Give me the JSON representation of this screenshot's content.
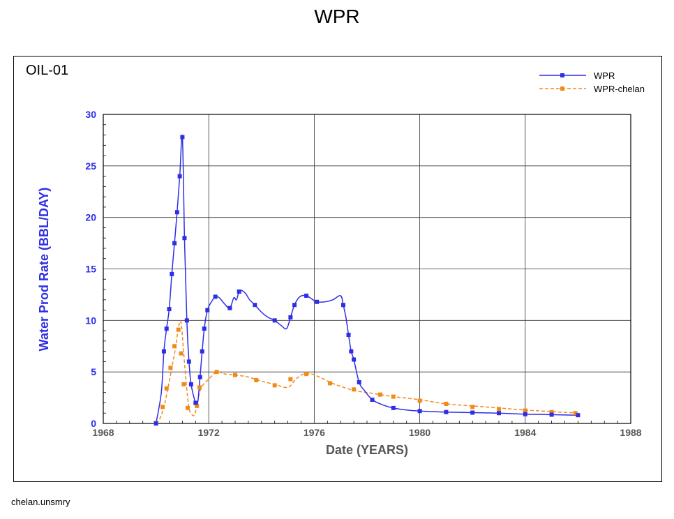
{
  "title": "WPR",
  "well": "OIL-01",
  "footer": "chelan.unsmry",
  "colors": {
    "wpr": "#2e2ee6",
    "chelan": "#f28a1a",
    "axis_y": "#2e2ee6",
    "axis_x": "#555555"
  },
  "chart_data": {
    "type": "line",
    "xlabel": "Date (YEARS)",
    "ylabel": "Water Prod Rate (BBL/DAY)",
    "xlim": [
      1968,
      1988
    ],
    "ylim": [
      0,
      30
    ],
    "x_ticks": [
      "1968",
      "1972",
      "1976",
      "1980",
      "1984",
      "1988"
    ],
    "y_ticks": [
      "0",
      "5",
      "10",
      "15",
      "20",
      "25",
      "30"
    ],
    "grid": true,
    "legend_position": "top-right",
    "series": [
      {
        "name": "WPR",
        "style": "solid",
        "x": [
          1970.0,
          1970.2,
          1970.3,
          1970.4,
          1970.5,
          1970.6,
          1970.7,
          1970.8,
          1970.9,
          1971.0,
          1971.08,
          1971.17,
          1971.25,
          1971.33,
          1971.5,
          1971.58,
          1971.67,
          1971.75,
          1971.83,
          1971.95,
          1972.1,
          1972.25,
          1972.4,
          1972.6,
          1972.8,
          1972.95,
          1973.05,
          1973.15,
          1973.25,
          1973.4,
          1973.55,
          1973.75,
          1974.0,
          1974.25,
          1974.5,
          1974.75,
          1974.95,
          1975.1,
          1975.25,
          1975.45,
          1975.7,
          1975.95,
          1976.1,
          1976.4,
          1976.7,
          1977.0,
          1977.1,
          1977.2,
          1977.3,
          1977.4,
          1977.5,
          1977.7,
          1977.9,
          1978.2,
          1978.6,
          1979.0,
          1979.5,
          1980.0,
          1981.0,
          1982.0,
          1983.0,
          1984.0,
          1985.0,
          1986.0
        ],
        "values": [
          0.0,
          3.0,
          7.0,
          9.2,
          11.1,
          14.5,
          17.5,
          20.5,
          24.0,
          27.8,
          18.0,
          10.0,
          6.0,
          3.8,
          2.0,
          2.0,
          4.5,
          7.0,
          9.2,
          11.0,
          11.8,
          12.3,
          12.2,
          11.6,
          11.2,
          12.2,
          12.0,
          12.8,
          12.9,
          12.6,
          12.0,
          11.5,
          10.8,
          10.3,
          10.0,
          9.5,
          9.2,
          10.3,
          11.5,
          12.3,
          12.4,
          12.0,
          11.8,
          11.8,
          12.0,
          12.4,
          11.5,
          10.3,
          8.6,
          7.0,
          6.2,
          4.0,
          3.2,
          2.3,
          1.8,
          1.5,
          1.3,
          1.2,
          1.1,
          1.05,
          1.0,
          0.9,
          0.85,
          0.8
        ],
        "marker_idx": [
          0,
          2,
          3,
          4,
          5,
          6,
          7,
          8,
          9,
          10,
          11,
          12,
          13,
          14,
          16,
          17,
          18,
          19,
          21,
          24,
          27,
          31,
          34,
          37,
          38,
          40,
          42,
          46,
          48,
          49,
          50,
          51,
          53,
          55,
          57,
          58,
          59,
          60,
          61,
          62,
          63
        ]
      },
      {
        "name": "WPR-chelan",
        "style": "dashed",
        "x": [
          1970.0,
          1970.15,
          1970.3,
          1970.45,
          1970.6,
          1970.75,
          1970.85,
          1970.95,
          1971.05,
          1971.15,
          1971.25,
          1971.35,
          1971.45,
          1971.55,
          1971.65,
          1971.8,
          1972.0,
          1972.3,
          1972.6,
          1973.0,
          1973.5,
          1974.0,
          1974.5,
          1975.0,
          1975.3,
          1975.6,
          1975.9,
          1976.2,
          1976.6,
          1977.0,
          1977.5,
          1978.0,
          1978.5,
          1979.0,
          1980.0,
          1981.0,
          1982.0,
          1983.0,
          1984.0,
          1985.0,
          1986.0
        ],
        "values": [
          0.0,
          0.5,
          1.6,
          3.4,
          5.4,
          7.5,
          9.3,
          9.8,
          6.8,
          3.8,
          1.5,
          0.9,
          0.8,
          1.7,
          3.0,
          3.8,
          4.3,
          5.0,
          4.8,
          4.7,
          4.5,
          4.1,
          3.8,
          3.5,
          4.3,
          4.8,
          4.8,
          4.5,
          4.0,
          3.6,
          3.2,
          3.0,
          2.8,
          2.6,
          2.3,
          1.9,
          1.7,
          1.5,
          1.3,
          1.15,
          1.0
        ],
        "markers": [
          [
            1970.0,
            0.05
          ],
          [
            1970.25,
            1.6
          ],
          [
            1970.4,
            3.4
          ],
          [
            1970.55,
            5.4
          ],
          [
            1970.7,
            7.5
          ],
          [
            1970.85,
            9.1
          ],
          [
            1970.95,
            6.8
          ],
          [
            1971.05,
            3.8
          ],
          [
            1971.2,
            1.5
          ],
          [
            1971.55,
            1.7
          ],
          [
            1971.65,
            3.5
          ],
          [
            1972.3,
            5.0
          ],
          [
            1973.0,
            4.7
          ],
          [
            1973.8,
            4.2
          ],
          [
            1974.5,
            3.7
          ],
          [
            1975.1,
            4.3
          ],
          [
            1975.7,
            4.8
          ],
          [
            1976.6,
            3.9
          ],
          [
            1977.5,
            3.3
          ],
          [
            1978.5,
            2.8
          ],
          [
            1979.0,
            2.6
          ],
          [
            1980.0,
            2.2
          ],
          [
            1981.0,
            1.9
          ],
          [
            1982.0,
            1.6
          ],
          [
            1983.0,
            1.4
          ],
          [
            1984.0,
            1.25
          ],
          [
            1985.0,
            1.1
          ],
          [
            1985.9,
            1.0
          ]
        ]
      }
    ]
  }
}
